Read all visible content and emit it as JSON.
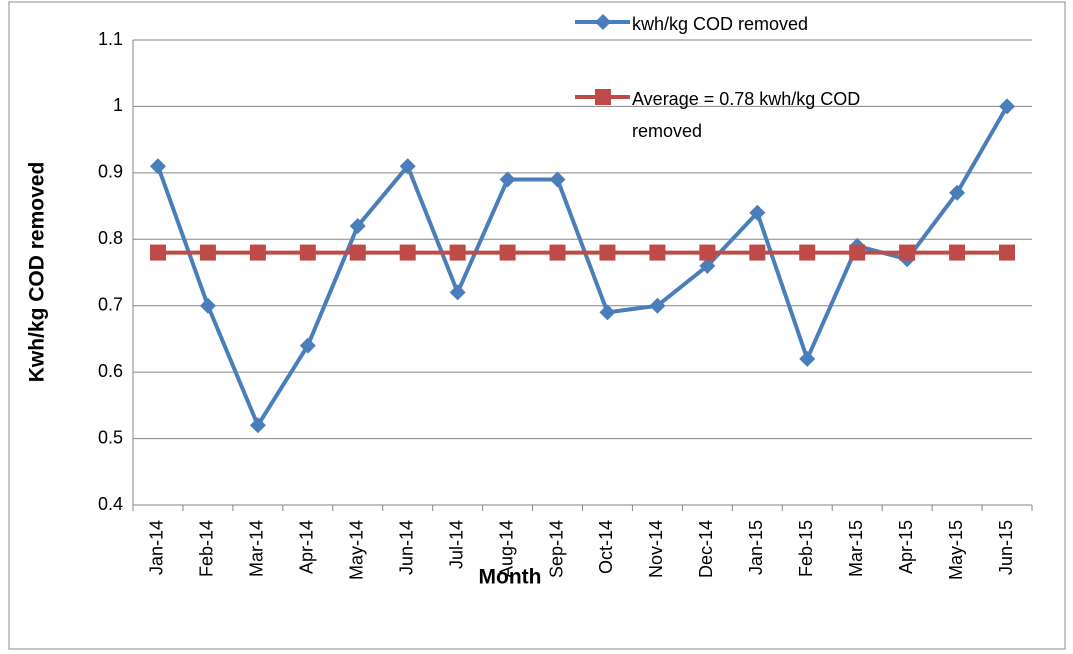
{
  "chart_data": {
    "type": "line",
    "x_label": "Month",
    "y_label": "Kwh/kg COD removed",
    "categories": [
      "Jan-14",
      "Feb-14",
      "Mar-14",
      "Apr-14",
      "May-14",
      "Jun-14",
      "Jul-14",
      "Aug-14",
      "Sep-14",
      "Oct-14",
      "Nov-14",
      "Dec-14",
      "Jan-15",
      "Feb-15",
      "Mar-15",
      "Apr-15",
      "May-15",
      "Jun-15"
    ],
    "series": [
      {
        "name": "kwh/kg COD removed",
        "color": "#4a7ebb",
        "marker": "diamond",
        "values": [
          0.91,
          0.7,
          0.52,
          0.64,
          0.82,
          0.91,
          0.72,
          0.89,
          0.89,
          0.69,
          0.7,
          0.76,
          0.84,
          0.62,
          0.79,
          0.77,
          0.87,
          1.0
        ]
      },
      {
        "name": "Average = 0.78 kwh/kg COD removed",
        "color": "#be4b48",
        "marker": "square",
        "values": [
          0.78,
          0.78,
          0.78,
          0.78,
          0.78,
          0.78,
          0.78,
          0.78,
          0.78,
          0.78,
          0.78,
          0.78,
          0.78,
          0.78,
          0.78,
          0.78,
          0.78,
          0.78
        ]
      }
    ],
    "ylim": [
      0.4,
      1.1
    ],
    "yticks": [
      0.4,
      0.5,
      0.6,
      0.7,
      0.8,
      0.9,
      1,
      1.1
    ],
    "grid": true
  }
}
